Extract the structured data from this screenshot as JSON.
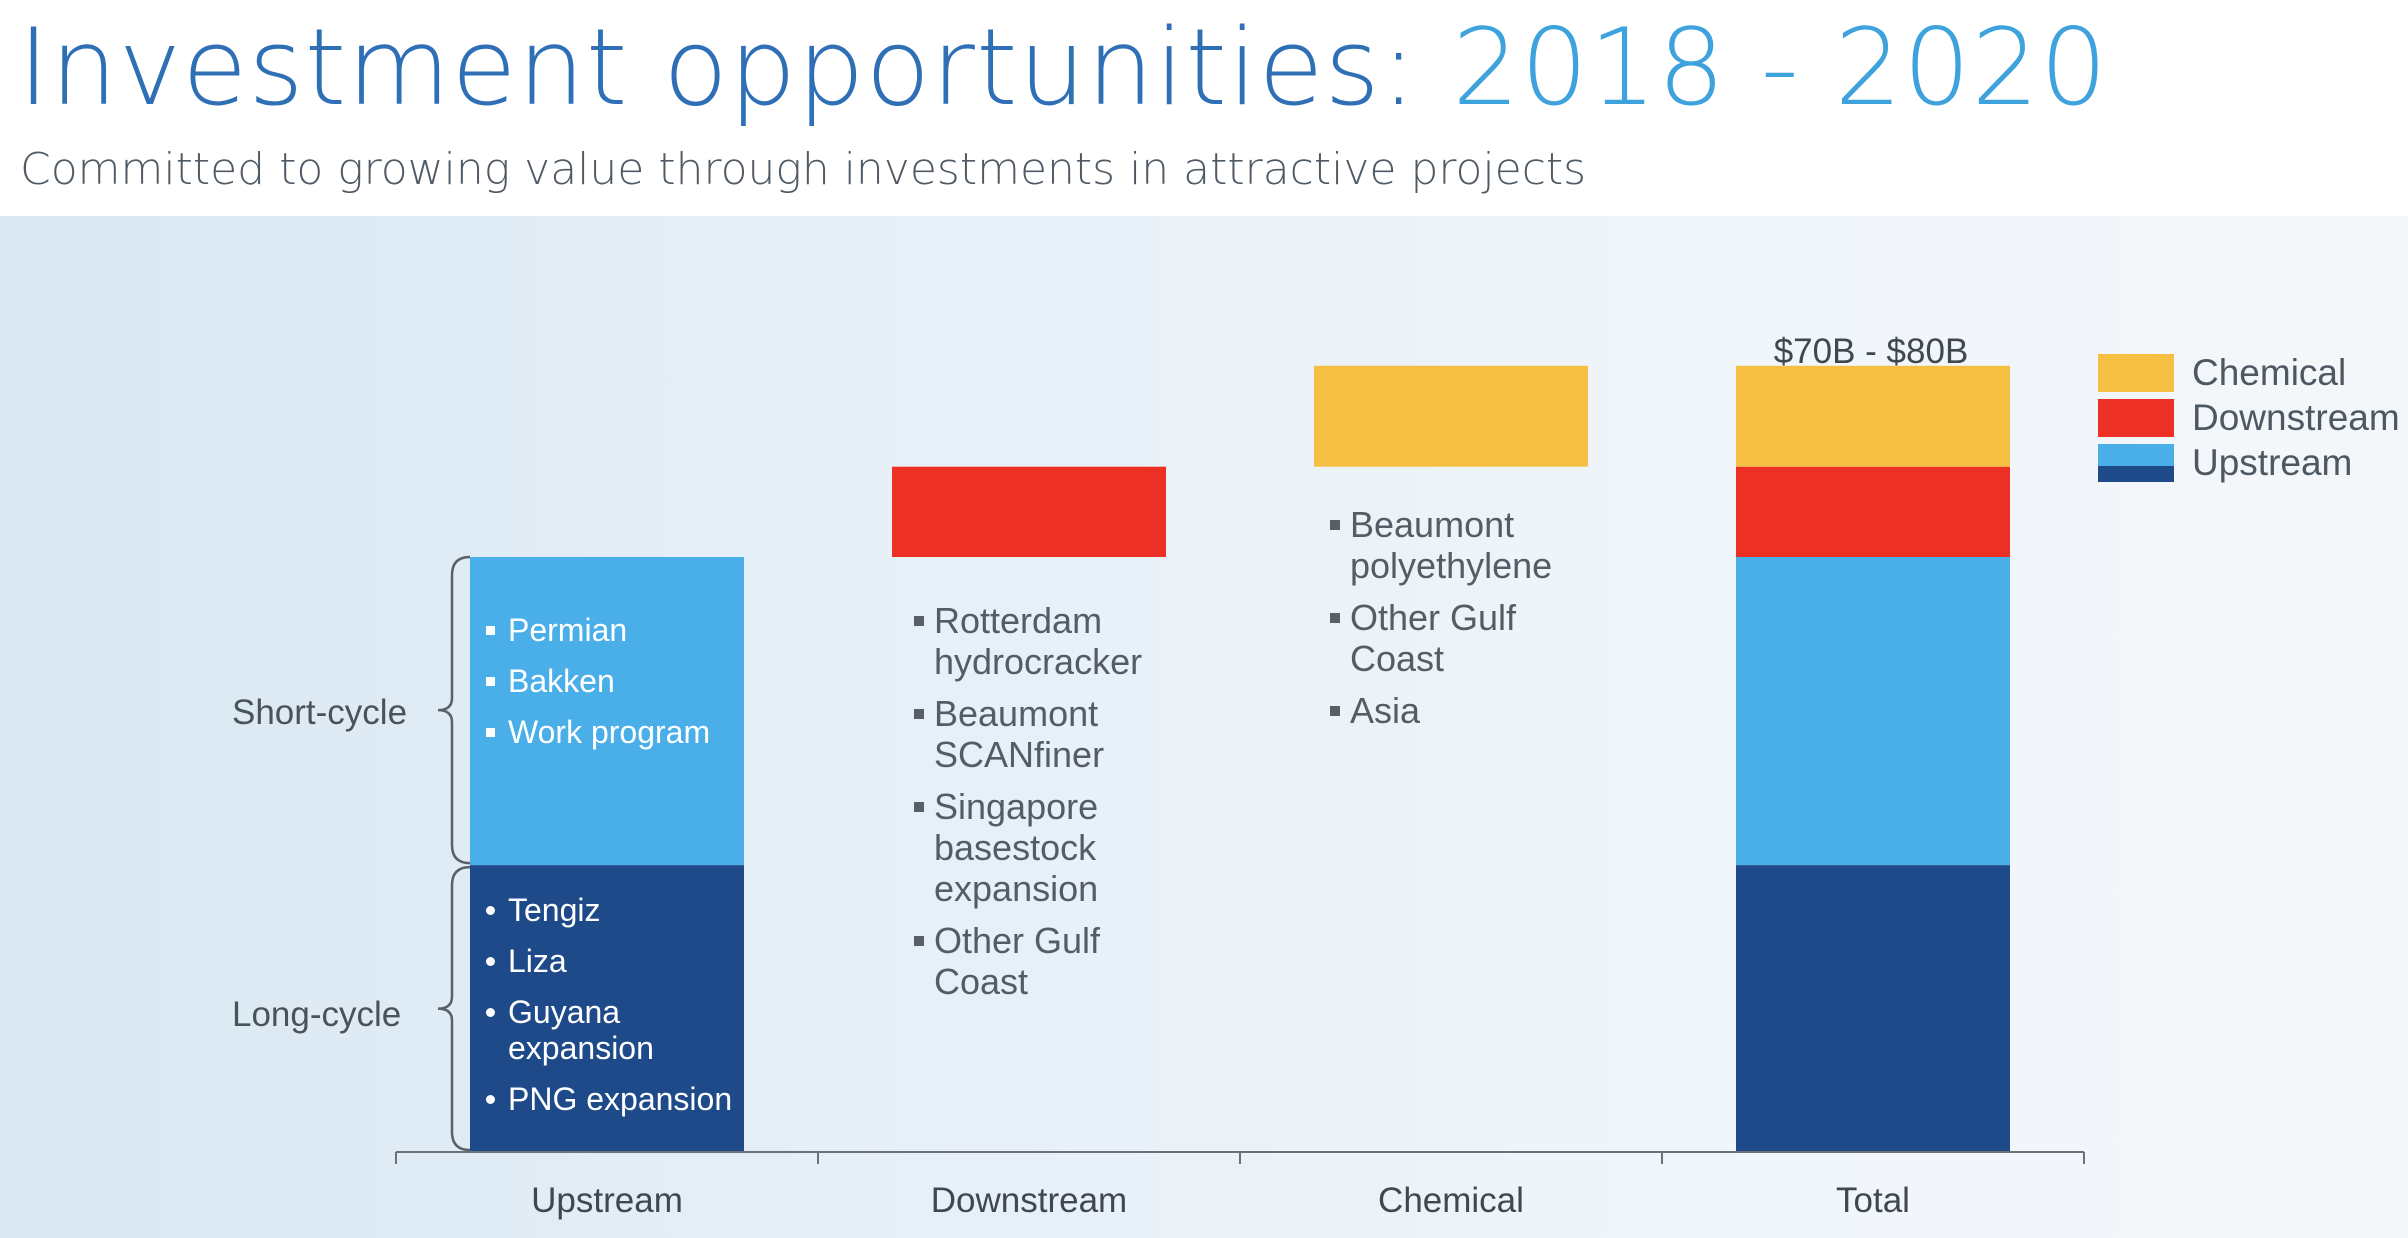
{
  "header": {
    "title_main": "Investment opportunities: ",
    "title_years": "2018 - 2020",
    "subtitle": "Committed to growing value through investments in attractive projects"
  },
  "colors": {
    "chemical": "#f5bf42",
    "downstream": "#ec3023",
    "upstream_short": "#4aaee9",
    "upstream_long": "#1e4a8a",
    "axis": "#6b7178"
  },
  "chart_data": {
    "type": "bar",
    "subtype": "waterfall",
    "categories": [
      "Upstream",
      "Downstream",
      "Chemical",
      "Total"
    ],
    "series": [
      {
        "name": "Upstream",
        "key": "upstream_long",
        "values": [
          27,
          0,
          0,
          27
        ]
      },
      {
        "name": "Upstream",
        "key": "upstream_short",
        "values": [
          29,
          0,
          0,
          29
        ]
      },
      {
        "name": "Downstream",
        "key": "downstream",
        "values": [
          0,
          8.5,
          0,
          8.5
        ]
      },
      {
        "name": "Chemical",
        "key": "chemical",
        "values": [
          0,
          0,
          9.5,
          9.5
        ]
      }
    ],
    "waterfall_bars": [
      {
        "category": "Upstream",
        "segments": [
          {
            "key": "upstream_long",
            "start": 0,
            "end": 27
          },
          {
            "key": "upstream_short",
            "start": 27,
            "end": 56
          }
        ]
      },
      {
        "category": "Downstream",
        "segments": [
          {
            "key": "downstream",
            "start": 56,
            "end": 64.5
          }
        ]
      },
      {
        "category": "Chemical",
        "segments": [
          {
            "key": "chemical",
            "start": 64.5,
            "end": 74
          }
        ]
      },
      {
        "category": "Total",
        "segments": [
          {
            "key": "upstream_long",
            "start": 0,
            "end": 27
          },
          {
            "key": "upstream_short",
            "start": 27,
            "end": 56
          },
          {
            "key": "downstream",
            "start": 56,
            "end": 64.5
          },
          {
            "key": "chemical",
            "start": 64.5,
            "end": 74
          }
        ]
      }
    ],
    "ylim": [
      0,
      80
    ],
    "total_label": "$70B - $80B",
    "legend_position": "top-right",
    "grid": false,
    "xlabel": "",
    "ylabel": ""
  },
  "legend": [
    {
      "label": "Chemical",
      "color": "#f5bf42"
    },
    {
      "label": "Downstream",
      "color": "#ec3023"
    },
    {
      "label": "Upstream",
      "color": "split"
    }
  ],
  "annotations": {
    "short_cycle": "Short-cycle",
    "long_cycle": "Long-cycle",
    "upstream_short_items": [
      "Permian",
      "Bakken",
      "Work program"
    ],
    "upstream_long_items": [
      "Tengiz",
      "Liza",
      "Guyana expansion",
      "PNG expansion"
    ],
    "downstream_items": [
      "Rotterdam hydrocracker",
      "Beaumont SCANfiner",
      "Singapore basestock expansion",
      "Other Gulf Coast"
    ],
    "chemical_items": [
      "Beaumont polyethylene",
      "Other Gulf Coast",
      "Asia"
    ]
  }
}
